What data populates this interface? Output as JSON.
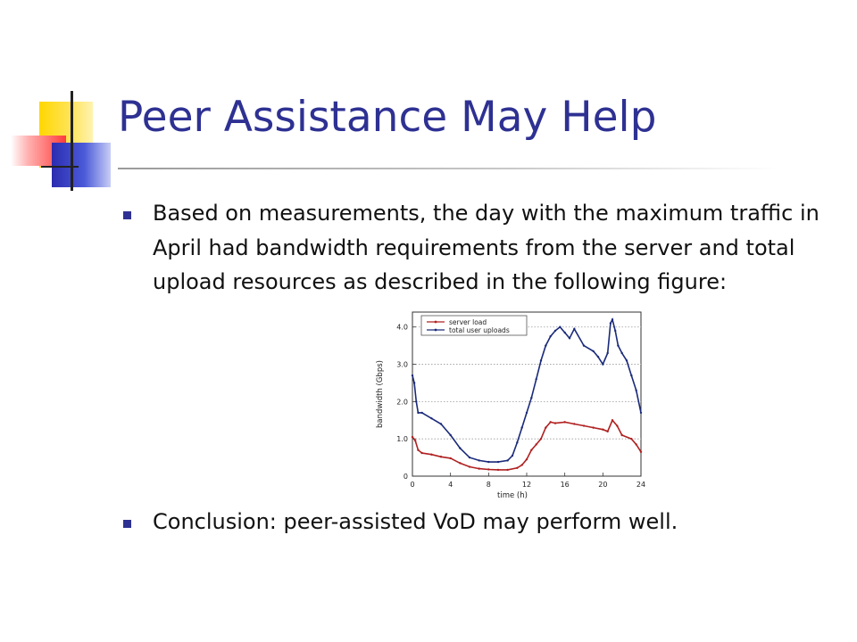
{
  "slide": {
    "title": "Peer Assistance May Help",
    "bullets": [
      "Based on measurements, the day with the maximum traffic in April had bandwidth requirements from the server and total upload resources as described in the following figure:",
      "Conclusion: peer-assisted VoD may perform well."
    ],
    "colors": {
      "title": "#2e3192",
      "bullet": "#2e3192",
      "server": "#b02020",
      "uploads": "#1a2a7a"
    }
  },
  "chart_data": {
    "type": "line",
    "title": "",
    "xlabel": "time (h)",
    "ylabel": "bandwidth (Gbps)",
    "xlim": [
      0,
      24
    ],
    "ylim": [
      0,
      4.4
    ],
    "xticks": [
      0,
      4,
      8,
      12,
      16,
      20,
      24
    ],
    "yticks": [
      0,
      1.0,
      2.0,
      3.0,
      4.0
    ],
    "ytick_labels": [
      "0",
      "1.0",
      "2.0",
      "3.0",
      "4.0"
    ],
    "grid": "horizontal dotted",
    "legend": "top-left",
    "series": [
      {
        "name": "server load",
        "color": "#b02020",
        "x": [
          0,
          0.3,
          0.6,
          1,
          2,
          3,
          4,
          5,
          6,
          7,
          8,
          9,
          10,
          11,
          11.5,
          12,
          12.5,
          13,
          13.5,
          14,
          14.5,
          15,
          16,
          17,
          18,
          19,
          20,
          20.5,
          21,
          21.5,
          22,
          23,
          23.5,
          24
        ],
        "y": [
          1.05,
          0.95,
          0.7,
          0.62,
          0.58,
          0.52,
          0.48,
          0.35,
          0.25,
          0.2,
          0.18,
          0.17,
          0.17,
          0.22,
          0.3,
          0.45,
          0.7,
          0.85,
          1.0,
          1.3,
          1.45,
          1.42,
          1.45,
          1.4,
          1.35,
          1.3,
          1.25,
          1.2,
          1.5,
          1.35,
          1.1,
          1.0,
          0.85,
          0.65
        ]
      },
      {
        "name": "total user uploads",
        "color": "#1a2a7a",
        "x": [
          0,
          0.2,
          0.4,
          0.6,
          1,
          2,
          3,
          4,
          5,
          6,
          7,
          8,
          9,
          10,
          10.5,
          11,
          11.5,
          12,
          12.5,
          13,
          13.5,
          14,
          14.5,
          15,
          15.5,
          16,
          16.5,
          17,
          18,
          19,
          19.5,
          20,
          20.5,
          20.8,
          21,
          21.3,
          21.6,
          22,
          22.5,
          23,
          23.5,
          24
        ],
        "y": [
          2.7,
          2.5,
          2.0,
          1.7,
          1.7,
          1.55,
          1.4,
          1.1,
          0.75,
          0.5,
          0.42,
          0.38,
          0.38,
          0.42,
          0.55,
          0.9,
          1.3,
          1.7,
          2.1,
          2.6,
          3.1,
          3.5,
          3.75,
          3.9,
          4.0,
          3.85,
          3.7,
          3.95,
          3.5,
          3.35,
          3.2,
          3.0,
          3.3,
          4.1,
          4.2,
          3.9,
          3.5,
          3.3,
          3.1,
          2.7,
          2.3,
          1.7
        ]
      }
    ]
  }
}
